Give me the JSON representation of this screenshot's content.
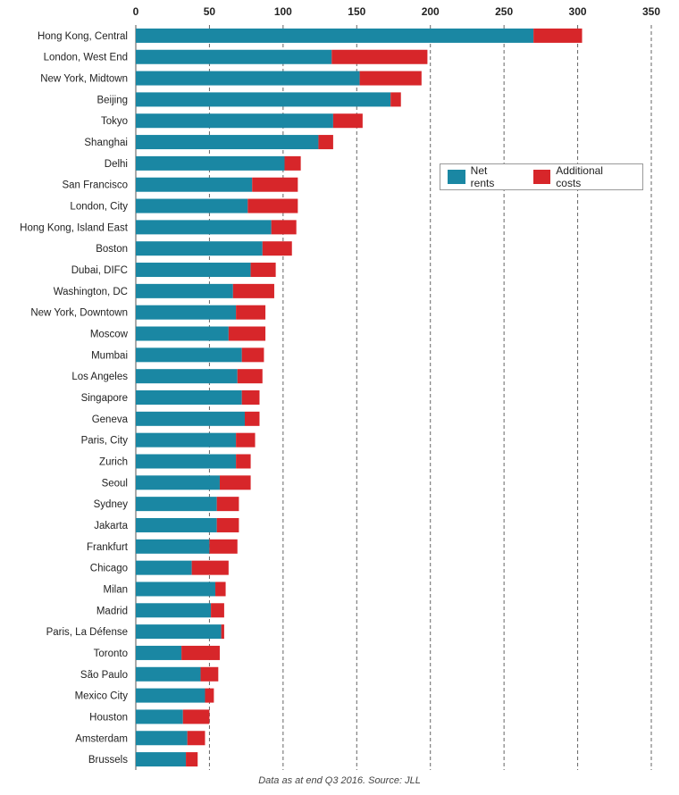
{
  "chart_data": {
    "type": "bar",
    "orientation": "horizontal",
    "stacked": true,
    "title": "",
    "xlabel": "",
    "ylabel": "",
    "xlim": [
      0,
      350
    ],
    "x_ticks": [
      0,
      50,
      100,
      150,
      200,
      250,
      300,
      350
    ],
    "x_axis_position": "top",
    "grid": "vertical dashed",
    "legend_placement": "upper-right",
    "categories": [
      "Hong Kong, Central",
      "London, West End",
      "New York, Midtown",
      "Beijing",
      "Tokyo",
      "Shanghai",
      "Delhi",
      "San Francisco",
      "London, City",
      "Hong Kong, Island East",
      "Boston",
      "Dubai, DIFC",
      "Washington, DC",
      "New York, Downtown",
      "Moscow",
      "Mumbai",
      "Los Angeles",
      "Singapore",
      "Geneva",
      "Paris, City",
      "Zurich",
      "Seoul",
      "Sydney",
      "Jakarta",
      "Frankfurt",
      "Chicago",
      "Milan",
      "Madrid",
      "Paris, La Défense",
      "Toronto",
      "São Paulo",
      "Mexico City",
      "Houston",
      "Amsterdam",
      "Brussels"
    ],
    "series": [
      {
        "name": "Net rents",
        "color": "#1a87a3",
        "values": [
          270,
          133,
          152,
          173,
          134,
          124,
          101,
          79,
          76,
          92,
          86,
          78,
          66,
          68,
          63,
          72,
          69,
          72,
          74,
          68,
          68,
          57,
          55,
          55,
          50,
          38,
          54,
          51,
          58,
          31,
          44,
          47,
          32,
          35,
          34
        ]
      },
      {
        "name": "Additional costs",
        "color": "#d7262a",
        "values": [
          33,
          65,
          42,
          7,
          20,
          10,
          11,
          31,
          34,
          17,
          20,
          17,
          28,
          20,
          25,
          15,
          17,
          12,
          10,
          13,
          10,
          21,
          15,
          15,
          19,
          25,
          7,
          9,
          2,
          26,
          12,
          6,
          18,
          12,
          8
        ]
      }
    ]
  },
  "source_note": "Data as at end Q3 2016. Source: JLL"
}
